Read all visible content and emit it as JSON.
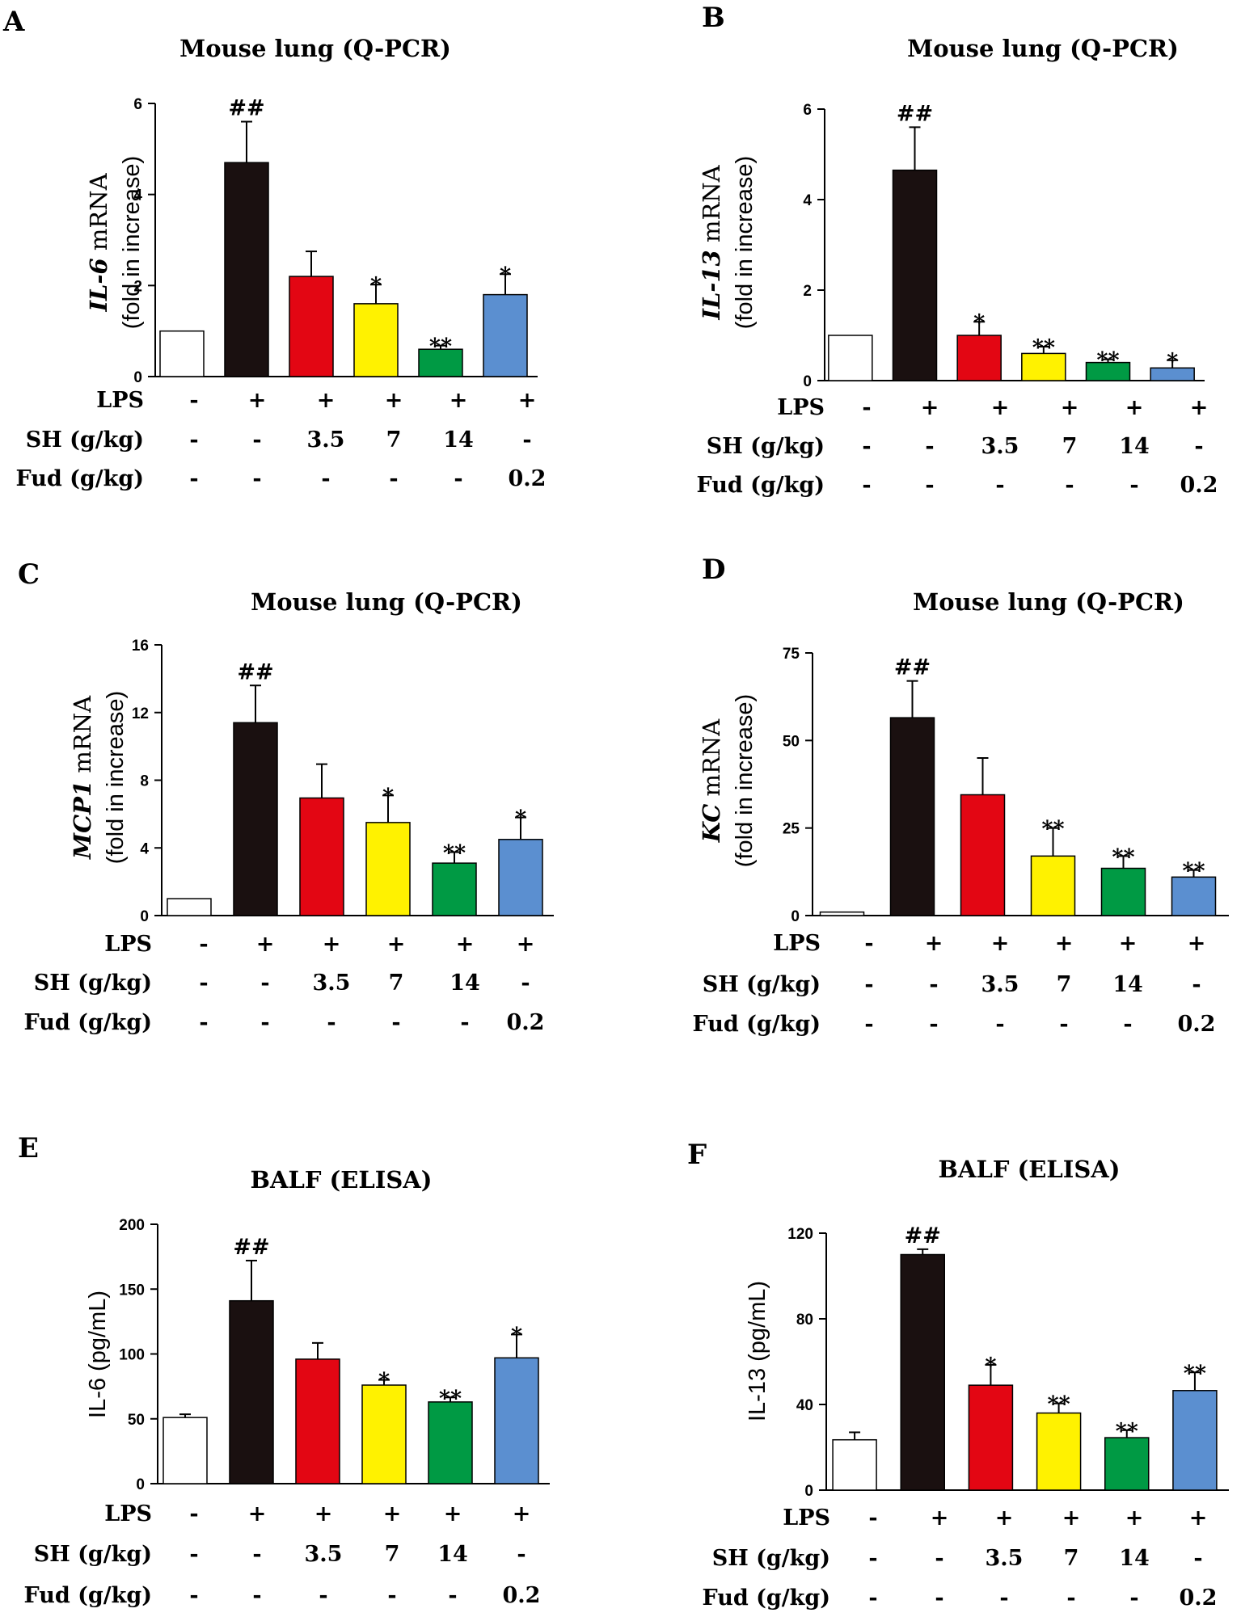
{
  "colors": {
    "ctrl": "#ffffff",
    "lps": "#1a1010",
    "sh35": "#e30613",
    "sh7": "#fff200",
    "sh14": "#009a44",
    "fud": "#5b8fd0",
    "axis": "#000000"
  },
  "conditions": {
    "labels": [
      "LPS",
      "SH (g/kg)",
      "Fud (g/kg)"
    ],
    "rows": [
      [
        "-",
        "+",
        "+",
        "+",
        "+",
        "+"
      ],
      [
        "-",
        "-",
        "3.5",
        "7",
        "14",
        "-"
      ],
      [
        "-",
        "-",
        "-",
        "-",
        "-",
        "0.2"
      ]
    ]
  },
  "chart_data": [
    {
      "type": "bar",
      "panel": "A",
      "title": "Mouse lung (Q-PCR)",
      "ylabel_italic": "IL-6",
      "ylabel_rest": " mRNA",
      "ylabel_line2": "(fold in increase)",
      "ylim": [
        0,
        6
      ],
      "yticks": [
        0,
        2,
        4,
        6
      ],
      "values": [
        1.0,
        4.7,
        2.2,
        1.6,
        0.6,
        1.8
      ],
      "errors": [
        0,
        0.9,
        0.55,
        0.42,
        0.08,
        0.45
      ],
      "sig": [
        "",
        "##",
        "",
        "*",
        "**",
        "*"
      ]
    },
    {
      "type": "bar",
      "panel": "B",
      "title": "Mouse lung (Q-PCR)",
      "ylabel_italic": "IL-13",
      "ylabel_rest": " mRNA",
      "ylabel_line2": "(fold in increase)",
      "ylim": [
        0,
        6
      ],
      "yticks": [
        0,
        2,
        4,
        6
      ],
      "values": [
        1.0,
        4.65,
        1.0,
        0.6,
        0.4,
        0.28
      ],
      "errors": [
        0,
        0.95,
        0.3,
        0.15,
        0.07,
        0.17
      ],
      "sig": [
        "",
        "##",
        "*",
        "**",
        "**",
        "*"
      ]
    },
    {
      "type": "bar",
      "panel": "C",
      "title": "Mouse lung (Q-PCR)",
      "ylabel_italic": "MCP1",
      "ylabel_rest": " mRNA",
      "ylabel_line2": "(fold in increase)",
      "ylim": [
        0,
        16
      ],
      "yticks": [
        0,
        4,
        8,
        12,
        16
      ],
      "values": [
        1.0,
        11.4,
        6.95,
        5.5,
        3.1,
        4.5
      ],
      "errors": [
        0,
        2.2,
        2.0,
        1.6,
        0.65,
        1.3
      ],
      "sig": [
        "",
        "##",
        "",
        "*",
        "**",
        "*"
      ]
    },
    {
      "type": "bar",
      "panel": "D",
      "title": "Mouse lung (Q-PCR)",
      "ylabel_italic": "KC",
      "ylabel_rest": " mRNA",
      "ylabel_line2": "(fold in increase)",
      "ylim": [
        0,
        75
      ],
      "yticks": [
        0,
        25,
        50,
        75
      ],
      "values": [
        1.0,
        56.5,
        34.5,
        17.0,
        13.5,
        11.0
      ],
      "errors": [
        0,
        10.5,
        10.5,
        8.0,
        3.5,
        2.0
      ],
      "sig": [
        "",
        "##",
        "",
        "**",
        "**",
        "**"
      ]
    },
    {
      "type": "bar",
      "panel": "E",
      "title": "BALF (ELISA)",
      "ylabel_italic": "",
      "ylabel_rest": "IL-6 (pg/mL)",
      "ylabel_line2": "",
      "ylim": [
        0,
        200
      ],
      "yticks": [
        0,
        50,
        100,
        150,
        200
      ],
      "values": [
        51,
        141,
        96,
        76,
        63,
        97
      ],
      "errors": [
        2.5,
        31,
        12.5,
        4,
        3.5,
        18
      ],
      "sig": [
        "",
        "##",
        "",
        "*",
        "**",
        "*"
      ]
    },
    {
      "type": "bar",
      "panel": "F",
      "title": "BALF (ELISA)",
      "ylabel_italic": "",
      "ylabel_rest": "IL-13 (pg/mL)",
      "ylabel_line2": "",
      "ylim": [
        0,
        120
      ],
      "yticks": [
        0,
        40,
        80,
        120
      ],
      "values": [
        23.5,
        110,
        49,
        36,
        24.5,
        46.5
      ],
      "errors": [
        3.5,
        2.5,
        9.5,
        4.5,
        3.5,
        8.5
      ],
      "sig": [
        "",
        "##",
        "*",
        "**",
        "**",
        "**"
      ]
    }
  ]
}
